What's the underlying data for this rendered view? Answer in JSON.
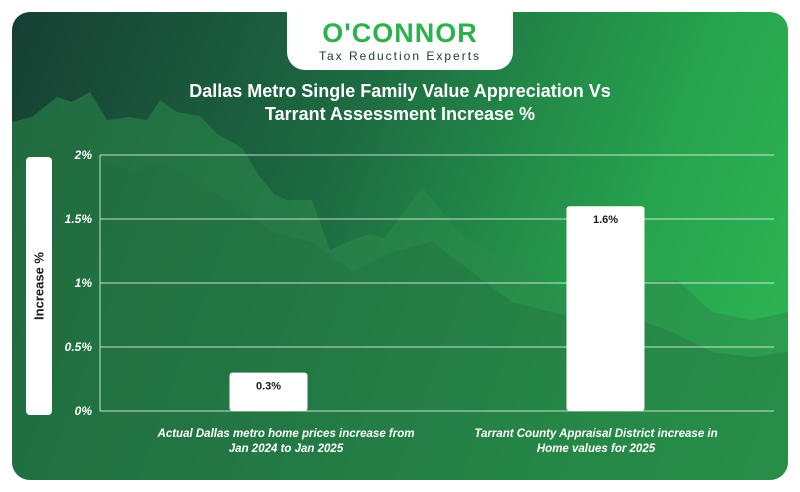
{
  "brand": {
    "name": "O'CONNOR",
    "tagline": "Tax Reduction Experts",
    "color": "#2bb24c"
  },
  "title_line1": "Dallas Metro Single Family Value Appreciation Vs",
  "title_line2": "Tarrant Assessment Increase %",
  "chart_data": {
    "type": "bar",
    "categories": [
      "Actual Dallas metro home prices increase from Jan 2024 to Jan 2025",
      "Tarrant County Appraisal District increase in Home values for 2025"
    ],
    "values": [
      0.3,
      1.6
    ],
    "value_labels": [
      "0.3%",
      "1.6%"
    ],
    "ylabel": "Increase %",
    "ylim": [
      0,
      2
    ],
    "yticks": [
      0,
      0.5,
      1,
      1.5,
      2
    ],
    "ytick_labels": [
      "0%",
      "0.5%",
      "1%",
      "1.5%",
      "2%"
    ],
    "grid": true,
    "bar_color": "#ffffff"
  },
  "category_labels": [
    {
      "line1": "Actual Dallas metro home prices increase from",
      "line2": "Jan 2024 to Jan 2025"
    },
    {
      "line1": "Tarrant County Appraisal District increase in",
      "line2": "Home values for 2025"
    }
  ]
}
